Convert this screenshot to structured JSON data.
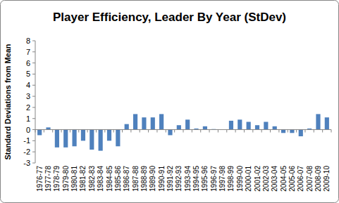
{
  "chart_data": {
    "type": "bar",
    "title": "Player Efficiency, Leader By Year (StDev)",
    "y_label": "Standard Deviations from Mean",
    "categories": [
      "1976-77",
      "1977-78",
      "1978-79",
      "1979-80",
      "1980-81",
      "1981-82",
      "1982-83",
      "1983-84",
      "1984-85",
      "1985-86",
      "1986-87",
      "1987-88",
      "1988-89",
      "1989-90",
      "1990-91",
      "1991-92",
      "1992-93",
      "1993-94",
      "1994-95",
      "1995-96",
      "1996-97",
      "1997-98",
      "1998-99",
      "1999-00",
      "2000-01",
      "2001-02",
      "2002-03",
      "2003-04",
      "2004-05",
      "2005-06",
      "2006-07",
      "2007-08",
      "2008-09",
      "2009-10"
    ],
    "values": [
      -0.5,
      0.2,
      -1.6,
      -1.6,
      -1.5,
      -1.0,
      -1.8,
      -1.9,
      -1.0,
      -1.5,
      0.5,
      1.4,
      1.1,
      1.1,
      1.4,
      -0.5,
      0.4,
      0.9,
      0.1,
      0.3,
      0.05,
      0,
      0.8,
      0.9,
      0.7,
      0.4,
      0.7,
      0.3,
      -0.3,
      -0.3,
      -0.6,
      0.1,
      1.4,
      1.1
    ],
    "color": "#4f81bd",
    "ylim": [
      -3,
      8
    ],
    "yticks": [
      -3,
      -2,
      -1,
      0,
      1,
      2,
      3,
      4,
      5,
      6,
      7,
      8
    ],
    "grid": false
  }
}
